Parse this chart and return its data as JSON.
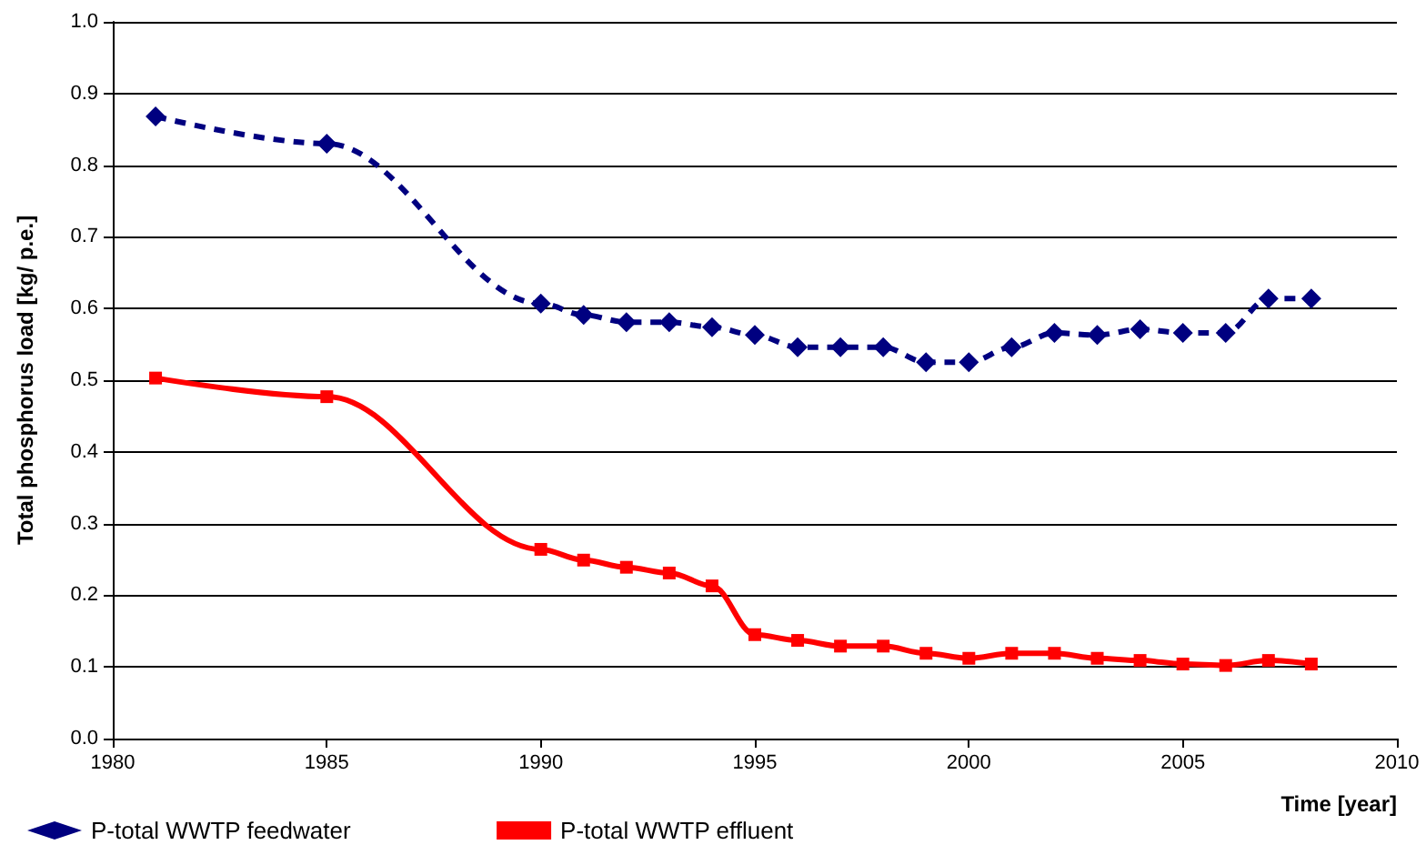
{
  "chart_data": {
    "type": "line",
    "xlabel": "Time [year]",
    "ylabel": "Total phosphorus load [kg/ p.e.]",
    "x": [
      1981,
      1985,
      1990,
      1991,
      1992,
      1993,
      1994,
      1995,
      1996,
      1997,
      1998,
      1999,
      2000,
      2001,
      2002,
      2003,
      2004,
      2005,
      2006,
      2007,
      2008
    ],
    "series": [
      {
        "name": "P-total WWTP feedwater",
        "color": "#000080",
        "marker": "diamond",
        "line_style": "dashed",
        "values": [
          0.868,
          0.83,
          0.607,
          0.591,
          0.581,
          0.581,
          0.574,
          0.563,
          0.546,
          0.546,
          0.546,
          0.525,
          0.525,
          0.546,
          0.566,
          0.563,
          0.571,
          0.566,
          0.566,
          0.614,
          0.614
        ]
      },
      {
        "name": "P-total WWTP effluent",
        "color": "#ff0000",
        "marker": "square",
        "line_style": "solid",
        "values": [
          0.503,
          0.477,
          0.264,
          0.249,
          0.239,
          0.231,
          0.213,
          0.145,
          0.137,
          0.129,
          0.129,
          0.119,
          0.112,
          0.119,
          0.119,
          0.112,
          0.109,
          0.104,
          0.102,
          0.109,
          0.104
        ]
      }
    ],
    "xlim": [
      1980,
      2010
    ],
    "xticks": [
      1980,
      1985,
      1990,
      1995,
      2000,
      2005,
      2010
    ],
    "ylim": [
      0,
      1
    ],
    "yticks": [
      {
        "value": 0,
        "label": "0.0"
      },
      0.1,
      0.2,
      0.3,
      0.4,
      0.5,
      0.6,
      0.7,
      0.8,
      0.9,
      {
        "value": 1,
        "label": "1.0"
      }
    ],
    "grid": "y",
    "legend": "bottom left"
  }
}
